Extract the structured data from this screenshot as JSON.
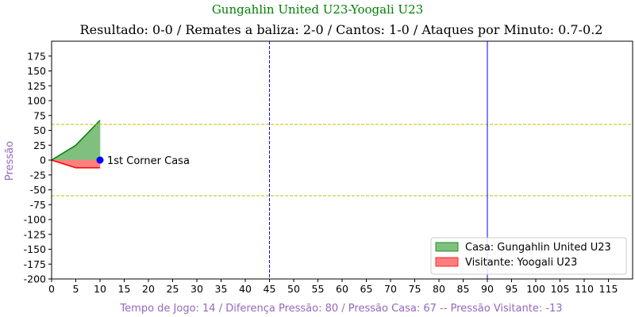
{
  "chart_data": {
    "type": "area",
    "title": "Gungahlin United U23-Yoogali U23",
    "subtitle": "Resultado: 0-0 / Remates a baliza: 2-0 / Cantos: 1-0 / Ataques por Minuto: 0.7-0.2",
    "xlabel": "Tempo de Jogo: 14 / Diferença Pressão: 80 / Pressão Casa: 67 -- Pressão Visitante: -13",
    "ylabel": "Pressão",
    "xlim": [
      0,
      120
    ],
    "ylim": [
      -200,
      200
    ],
    "x_ticks": [
      0,
      5,
      10,
      15,
      20,
      25,
      30,
      35,
      40,
      45,
      50,
      55,
      60,
      65,
      70,
      75,
      80,
      85,
      90,
      95,
      100,
      105,
      110,
      115
    ],
    "y_ticks": [
      -200,
      -175,
      -150,
      -125,
      -100,
      -75,
      -50,
      -25,
      0,
      25,
      50,
      75,
      100,
      125,
      150,
      175
    ],
    "series": [
      {
        "name": "Casa: Gungahlin United U23",
        "color": "#008000",
        "fill": "#7fc07f",
        "x": [
          0,
          5,
          10
        ],
        "y": [
          0,
          25,
          67
        ]
      },
      {
        "name": "Visitante: Yoogali U23",
        "color": "#ff0000",
        "fill": "#ff7f7f",
        "x": [
          0,
          5,
          10
        ],
        "y": [
          0,
          -13,
          -13
        ]
      }
    ],
    "reference_lines": {
      "horizontal": [
        {
          "y": 60,
          "color": "#bfbf00",
          "style": "dashed"
        },
        {
          "y": -60,
          "color": "#bfbf00",
          "style": "dashed"
        }
      ],
      "vertical": [
        {
          "x": 45,
          "color": "#0000ff",
          "style": "dashed"
        },
        {
          "x": 90,
          "color": "#0000ff",
          "style": "solid"
        }
      ]
    },
    "annotations": [
      {
        "x": 10,
        "y": 0,
        "text": "1st Corner Casa",
        "marker_color": "#0000ff"
      }
    ],
    "legend_position": "bottom-right",
    "grid": false
  },
  "colors": {
    "title": "#008000",
    "axis_label": "#9467bd",
    "subtitle": "#000000"
  }
}
